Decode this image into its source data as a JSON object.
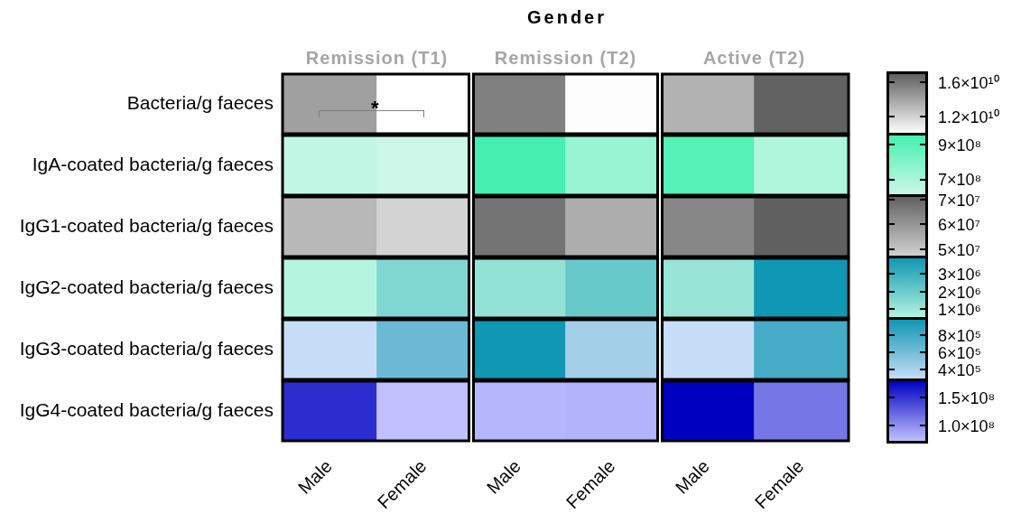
{
  "chart_data": [
    {
      "type": "heatmap",
      "title": "Gender",
      "annotations": [
        "Remission (T1)",
        "Remission (T2)",
        "Active (T2)",
        "*"
      ],
      "categories": [
        null,
        null,
        null,
        null,
        null,
        null
      ],
      "y_categories": [
        "Bacteria/g faeces"
      ],
      "cells": [
        [
          14200000000.0,
          10000000000.0,
          15600000000.0,
          10100000000.0,
          13400000000.0,
          16900000000.0
        ]
      ],
      "clim": [
        10000000000.0,
        17000000000.0
      ],
      "cticks": [
        {
          "value": 12000000000.0,
          "label": "1.2×10¹⁰"
        },
        {
          "value": 16000000000.0,
          "label": "1.6×10¹⁰"
        }
      ],
      "colors": [
        "#ffffff",
        "#606060"
      ],
      "tick_labels": "y"
    },
    {
      "type": "heatmap",
      "categories": [
        null,
        null,
        null,
        null,
        null,
        null
      ],
      "y_categories": [
        "IgA-coated bacteria/g faeces"
      ],
      "cells": [
        [
          637000000.0,
          610000000.0,
          950000000.0,
          743000000.0,
          909000000.0,
          682000000.0
        ]
      ],
      "clim": [
        610000000.0,
        950000000.0
      ],
      "cticks": [
        {
          "value": 700000000.0,
          "label": "7×10⁸"
        },
        {
          "value": 900000000.0,
          "label": "9×10⁸"
        }
      ],
      "colors": [
        "#cdf7e8",
        "#45f0b0"
      ],
      "tick_labels": "y"
    },
    {
      "type": "heatmap",
      "categories": [
        null,
        null,
        null,
        null,
        null,
        null
      ],
      "y_categories": [
        "IgG1-coated bacteria/g faeces"
      ],
      "cells": [
        [
          52700000.0,
          47000000.0,
          67000000.0,
          54800000.0,
          63000000.0,
          71000000.0
        ]
      ],
      "clim": [
        47000000.0,
        71000000.0
      ],
      "cticks": [
        {
          "value": 50000000.0,
          "label": "5×10⁷"
        },
        {
          "value": 60000000.0,
          "label": "6×10⁷"
        },
        {
          "value": 70000000.0,
          "label": "7×10⁷"
        }
      ],
      "colors": [
        "#d3d3d3",
        "#616161"
      ],
      "tick_labels": "y"
    },
    {
      "type": "heatmap",
      "categories": [
        null,
        null,
        null,
        null,
        null,
        null
      ],
      "y_categories": [
        "IgG2-coated bacteria/g faeces"
      ],
      "cells": [
        [
          500000.0,
          1590000.0,
          1200000.0,
          2090000.0,
          1100000.0,
          3900000.0
        ]
      ],
      "clim": [
        500000.0,
        3900000.0
      ],
      "cticks": [
        {
          "value": 1000000.0,
          "label": "1×10⁶"
        },
        {
          "value": 2000000.0,
          "label": "2×10⁶"
        },
        {
          "value": 3000000.0,
          "label": "3×10⁶"
        }
      ],
      "colors": [
        "#b5f5df",
        "#1097b3"
      ],
      "tick_labels": "y"
    },
    {
      "type": "heatmap",
      "categories": [
        null,
        null,
        null,
        null,
        null,
        null
      ],
      "y_categories": [
        "IgG3-coated bacteria/g faeces"
      ],
      "cells": [
        [
          290000.0,
          640000.0,
          980000.0,
          430000.0,
          290000.0,
          780000.0
        ]
      ],
      "clim": [
        290000.0,
        980000.0
      ],
      "cticks": [
        {
          "value": 400000.0,
          "label": "4×10⁵"
        },
        {
          "value": 600000.0,
          "label": "6×10⁵"
        },
        {
          "value": 800000.0,
          "label": "8×10⁵"
        }
      ],
      "colors": [
        "#c8ddf7",
        "#1097b3"
      ],
      "tick_labels": "y"
    },
    {
      "type": "heatmap",
      "categories": [
        "Male",
        "Female",
        "Male",
        "Female",
        "Male",
        "Female"
      ],
      "y_categories": [
        "IgG4-coated bacteria/g faeces"
      ],
      "cells": [
        [
          154000000.0,
          73000000.0,
          78500000.0,
          80000000.0,
          179000000.0,
          114000000.0
        ]
      ],
      "clim": [
        73000000.0,
        179000000.0
      ],
      "cticks": [
        {
          "value": 100000000.0,
          "label": "1.0×10⁸"
        },
        {
          "value": 150000000.0,
          "label": "1.5×10⁸"
        }
      ],
      "colors": [
        "#c0c0ff",
        "#0000c0"
      ]
    }
  ]
}
